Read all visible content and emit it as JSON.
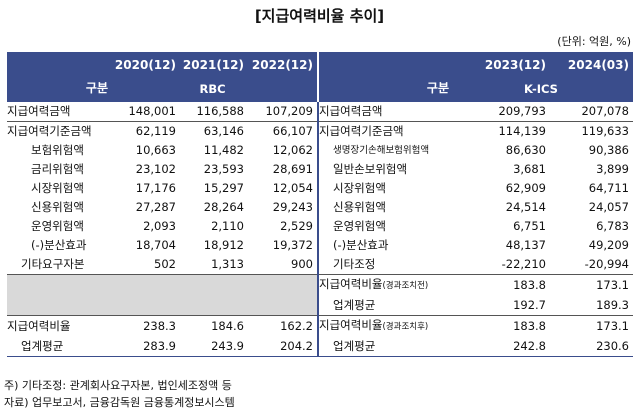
{
  "title": "[지급여력비율 추이]",
  "unit": "(단위: 억원, %)",
  "header": {
    "category": "구분",
    "left_years": [
      "2020(12)",
      "2021(12)",
      "2022(12)"
    ],
    "left_regime": "RBC",
    "right_years": [
      "2023(12)",
      "2024(03)"
    ],
    "right_regime": "K-ICS"
  },
  "left_rows": [
    {
      "label": "지급여력금액",
      "values": [
        "148,001",
        "116,588",
        "107,209"
      ]
    },
    {
      "label": "지급여력기준금액",
      "values": [
        "62,119",
        "63,146",
        "66,107"
      ]
    },
    {
      "label": "보험위험액",
      "values": [
        "10,663",
        "11,482",
        "12,062"
      ]
    },
    {
      "label": "금리위험액",
      "values": [
        "23,102",
        "23,593",
        "28,691"
      ]
    },
    {
      "label": "시장위험액",
      "values": [
        "17,176",
        "15,297",
        "12,054"
      ]
    },
    {
      "label": "신용위험액",
      "values": [
        "27,287",
        "28,264",
        "29,243"
      ]
    },
    {
      "label": "운영위험액",
      "values": [
        "2,093",
        "2,110",
        "2,529"
      ]
    },
    {
      "label": "(-)분산효과",
      "values": [
        "18,704",
        "18,912",
        "19,372"
      ]
    },
    {
      "label": "기타요구자본",
      "values": [
        "502",
        "1,313",
        "900"
      ]
    }
  ],
  "right_rows": [
    {
      "label": "지급여력금액",
      "values": [
        "209,793",
        "207,078"
      ]
    },
    {
      "label": "지급여력기준금액",
      "values": [
        "114,139",
        "119,633"
      ]
    },
    {
      "label": "생명장기손해보험위험액",
      "values": [
        "86,630",
        "90,386"
      ]
    },
    {
      "label": "일반손보위험액",
      "values": [
        "3,681",
        "3,899"
      ]
    },
    {
      "label": "시장위험액",
      "values": [
        "62,909",
        "64,711"
      ]
    },
    {
      "label": "신용위험액",
      "values": [
        "24,514",
        "24,057"
      ]
    },
    {
      "label": "운영위험액",
      "values": [
        "6,751",
        "6,783"
      ]
    },
    {
      "label": "(-)분산효과",
      "values": [
        "48,137",
        "49,209"
      ]
    },
    {
      "label": "기타조정",
      "values": [
        "-22,210",
        "-20,994"
      ]
    }
  ],
  "ratio_before": {
    "label": "지급여력비율",
    "note": "(경과조치전)",
    "values": [
      "183.8",
      "173.1"
    ],
    "avg_label": "업계평균",
    "avg_values": [
      "192.7",
      "189.3"
    ]
  },
  "ratio_left": {
    "label": "지급여력비율",
    "values": [
      "238.3",
      "184.6",
      "162.2"
    ],
    "avg_label": "업계평균",
    "avg_values": [
      "283.9",
      "243.9",
      "204.2"
    ]
  },
  "ratio_after": {
    "label": "지급여력비율",
    "note": "(경과조치후)",
    "values": [
      "183.8",
      "173.1"
    ],
    "avg_label": "업계평균",
    "avg_values": [
      "242.8",
      "230.6"
    ]
  },
  "notes": [
    "주) 기타조정: 관계회사요구자본, 법인세조정액 등",
    "자료) 업무보고서, 금융감독원 금융통계정보시스템"
  ]
}
